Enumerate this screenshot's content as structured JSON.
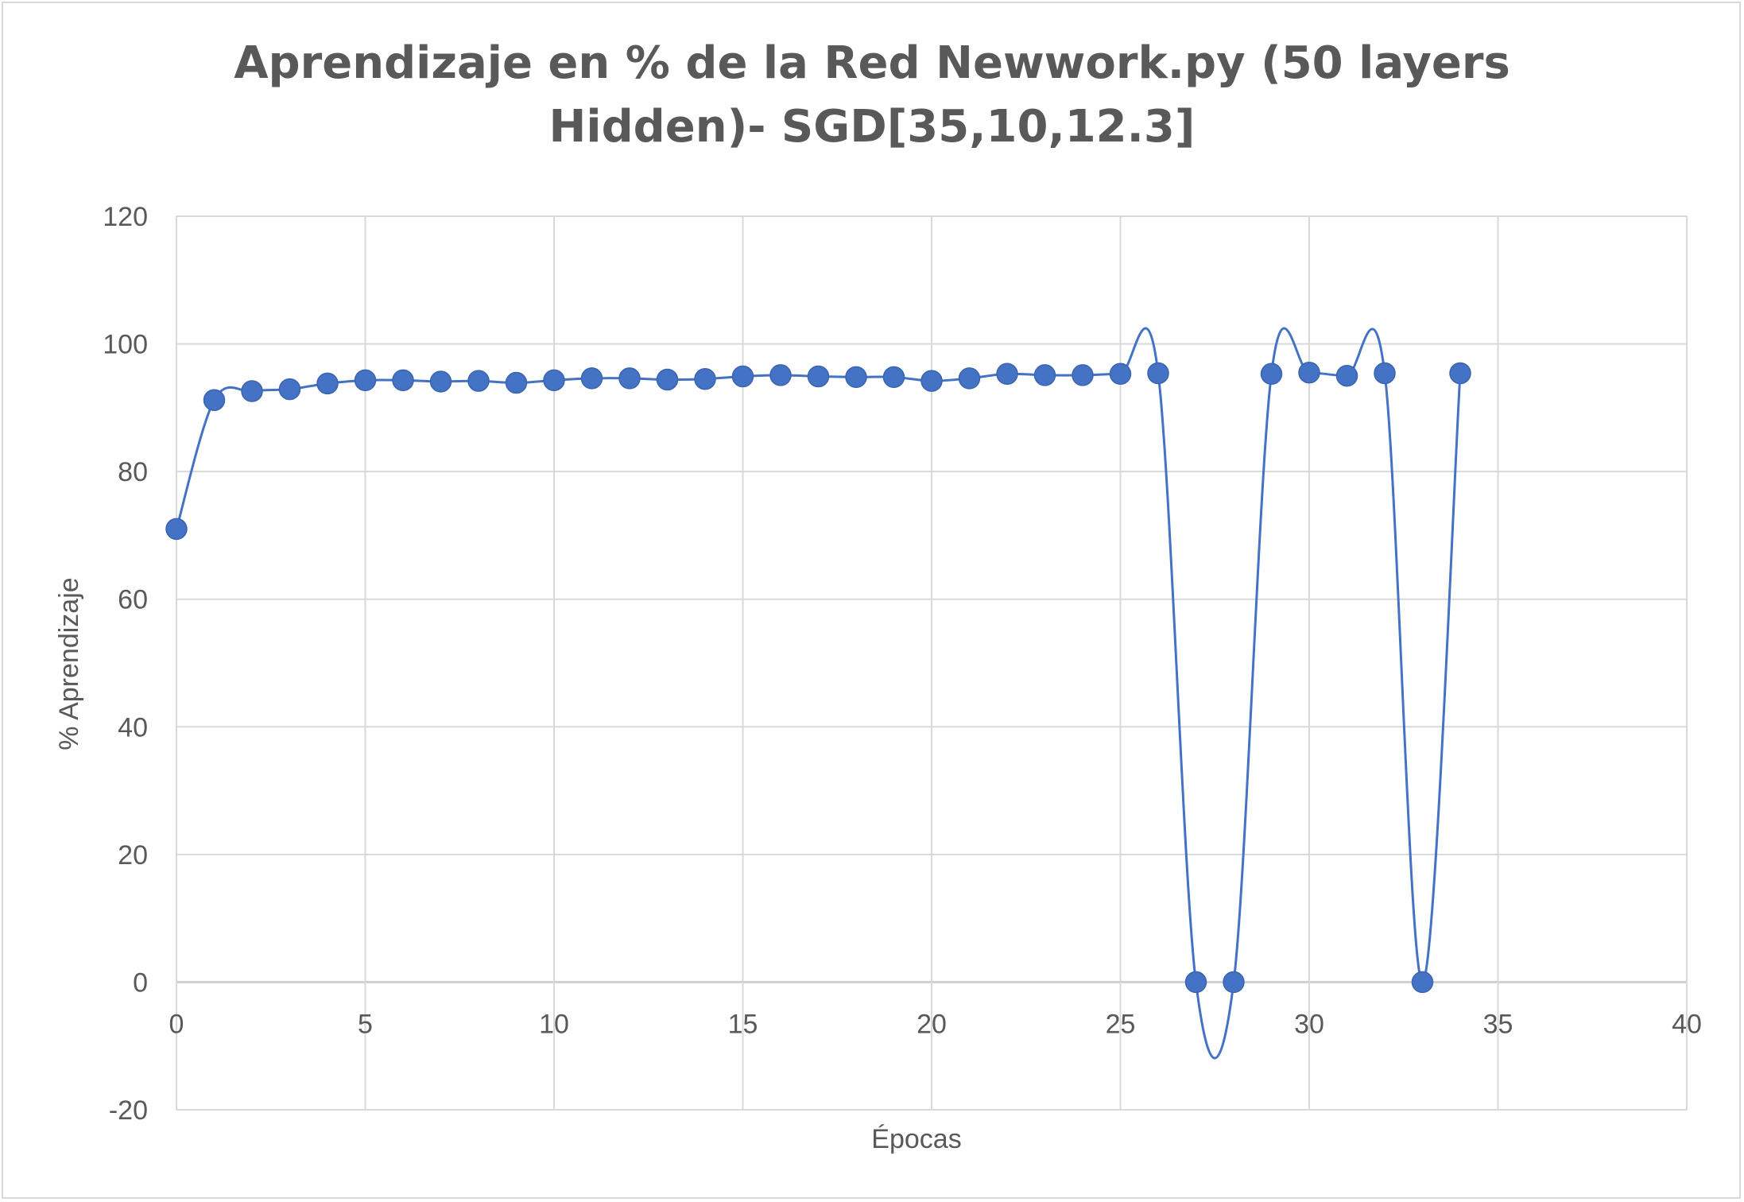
{
  "chart_data": {
    "type": "scatter",
    "title_lines": [
      "Aprendizaje en % de la Red Newwork.py (50 layers",
      "Hidden)- SGD[35,10,12.3]"
    ],
    "xlabel": "Épocas",
    "ylabel": "% Aprendizaje",
    "xlim": [
      0,
      40
    ],
    "ylim": [
      -20,
      120
    ],
    "xticks": [
      0,
      5,
      10,
      15,
      20,
      25,
      30,
      35,
      40
    ],
    "yticks": [
      -20,
      0,
      20,
      40,
      60,
      80,
      100,
      120
    ],
    "grid": true,
    "line_style": "smooth",
    "series": [
      {
        "color": "#4472C4",
        "x": [
          0,
          1,
          2,
          3,
          4,
          5,
          6,
          7,
          8,
          9,
          10,
          11,
          12,
          13,
          14,
          15,
          16,
          17,
          18,
          19,
          20,
          21,
          22,
          23,
          24,
          25,
          26,
          27,
          28,
          29,
          30,
          31,
          32,
          33,
          34
        ],
        "y": [
          71.0,
          91.2,
          92.6,
          92.9,
          93.8,
          94.3,
          94.3,
          94.1,
          94.2,
          93.9,
          94.3,
          94.6,
          94.6,
          94.4,
          94.5,
          94.9,
          95.1,
          94.9,
          94.8,
          94.8,
          94.2,
          94.6,
          95.3,
          95.1,
          95.1,
          95.3,
          95.4,
          0.0,
          0.0,
          95.3,
          95.5,
          95.0,
          95.4,
          0.0,
          95.4
        ]
      }
    ]
  }
}
